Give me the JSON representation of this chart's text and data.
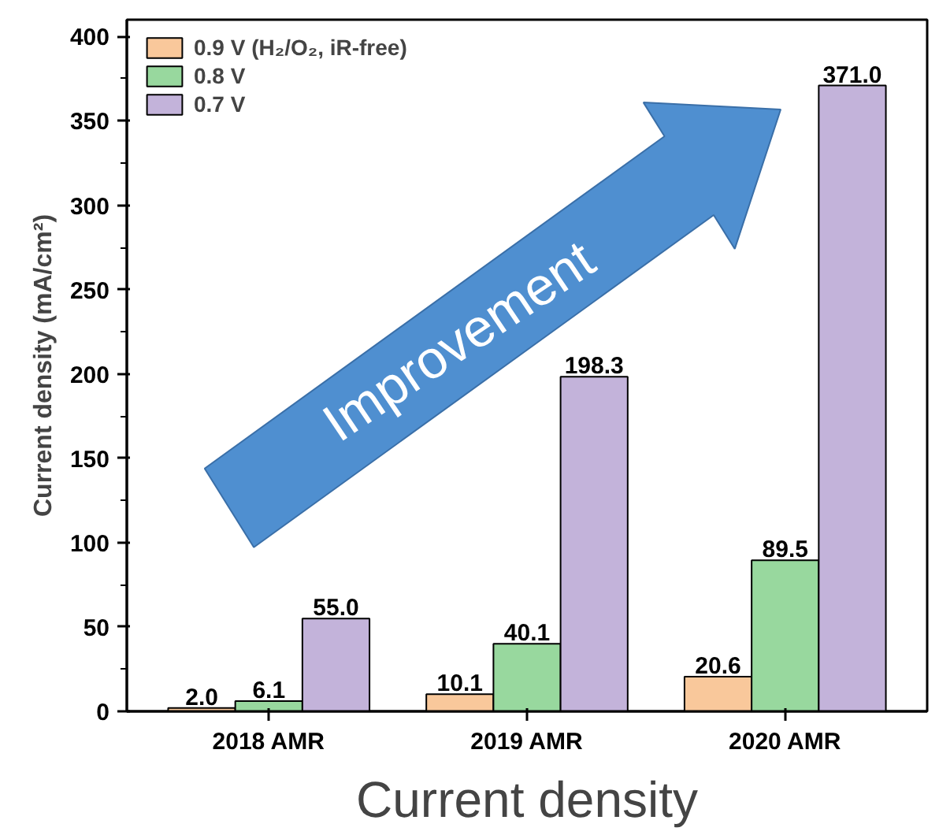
{
  "chart_data": {
    "type": "bar",
    "categories": [
      "2018 AMR",
      "2019 AMR",
      "2020 AMR"
    ],
    "series": [
      {
        "name": "0.9 V (H₂/O₂, iR-free)",
        "color": "#f9c89b",
        "values": [
          2.0,
          10.1,
          20.6
        ],
        "value_labels": [
          "2.0",
          "10.1",
          "20.6"
        ]
      },
      {
        "name": "0.8 V",
        "color": "#98d89e",
        "values": [
          6.1,
          40.1,
          89.5
        ],
        "value_labels": [
          "6.1",
          "40.1",
          "89.5"
        ]
      },
      {
        "name": "0.7 V",
        "color": "#c3b3da",
        "values": [
          55.0,
          198.3,
          371.0
        ],
        "value_labels": [
          "55.0",
          "198.3",
          "371.0"
        ]
      }
    ],
    "ylabel": "Current density (mA/cm²)",
    "ylim": [
      0,
      410
    ],
    "yticks": [
      0,
      50,
      100,
      150,
      200,
      250,
      300,
      350,
      400
    ],
    "grid": false,
    "legend": "top left",
    "annotations": [
      {
        "text": "Improvement"
      },
      "Current density"
    ]
  }
}
